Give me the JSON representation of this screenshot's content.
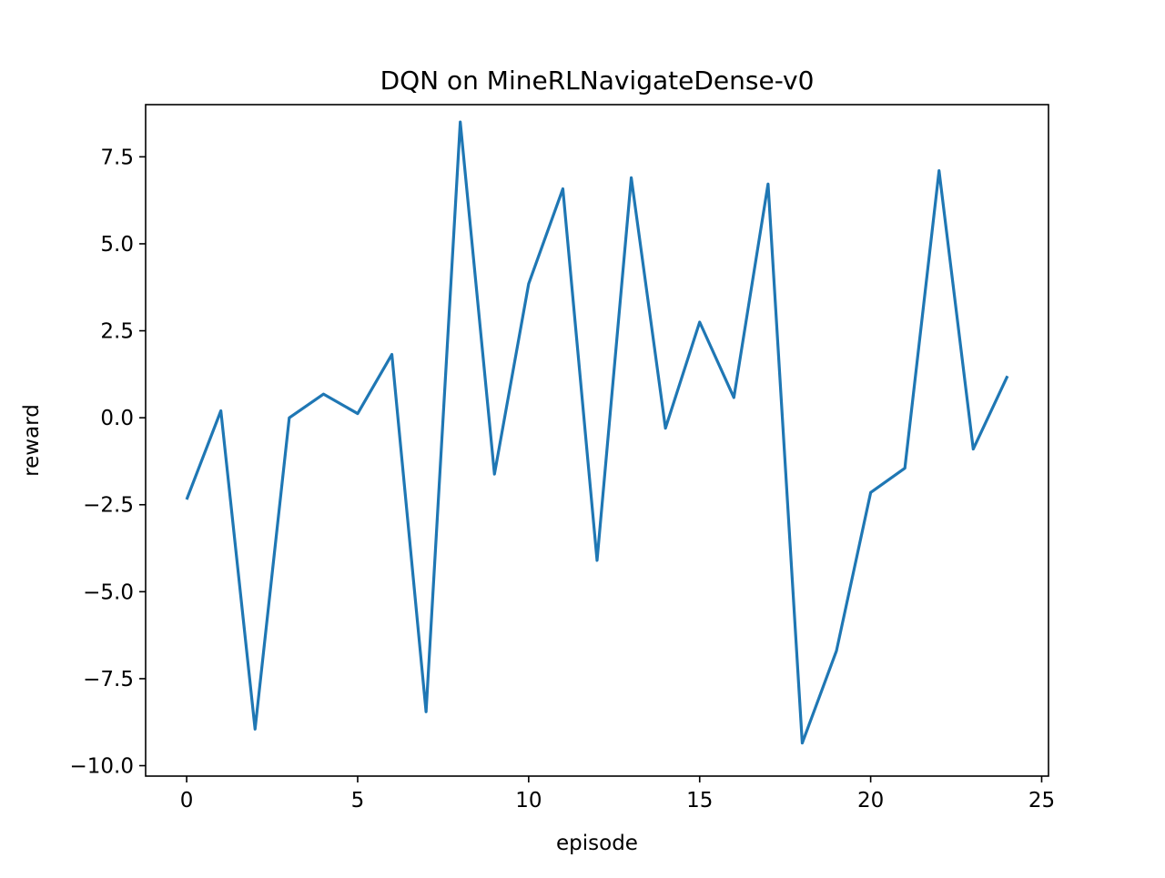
{
  "chart_data": {
    "type": "line",
    "title": "DQN on MineRLNavigateDense-v0",
    "xlabel": "episode",
    "ylabel": "reward",
    "xlim": [
      -1.2,
      25.2
    ],
    "ylim": [
      -10.3,
      9.0
    ],
    "xticks": [
      {
        "value": 0,
        "label": "0"
      },
      {
        "value": 5,
        "label": "5"
      },
      {
        "value": 10,
        "label": "10"
      },
      {
        "value": 15,
        "label": "15"
      },
      {
        "value": 20,
        "label": "20"
      },
      {
        "value": 25,
        "label": "25"
      }
    ],
    "yticks": [
      {
        "value": -10.0,
        "label": "−10.0"
      },
      {
        "value": -7.5,
        "label": "−7.5"
      },
      {
        "value": -5.0,
        "label": "−5.0"
      },
      {
        "value": -2.5,
        "label": "−2.5"
      },
      {
        "value": 0.0,
        "label": "0.0"
      },
      {
        "value": 2.5,
        "label": "2.5"
      },
      {
        "value": 5.0,
        "label": "5.0"
      },
      {
        "value": 7.5,
        "label": "7.5"
      }
    ],
    "grid": false,
    "series": [
      {
        "color": "#1f77b4",
        "x": [
          0,
          1,
          2,
          3,
          4,
          5,
          6,
          7,
          8,
          9,
          10,
          11,
          12,
          13,
          14,
          15,
          16,
          17,
          18,
          19,
          20,
          21,
          22,
          23,
          24
        ],
        "y": [
          -2.35,
          0.2,
          -8.95,
          0.0,
          0.68,
          0.12,
          1.82,
          -8.45,
          8.5,
          -1.62,
          3.85,
          6.58,
          -4.1,
          6.9,
          -0.3,
          2.75,
          0.58,
          6.72,
          -9.35,
          -6.7,
          -2.15,
          -1.45,
          7.1,
          -0.9,
          1.2
        ]
      }
    ]
  }
}
